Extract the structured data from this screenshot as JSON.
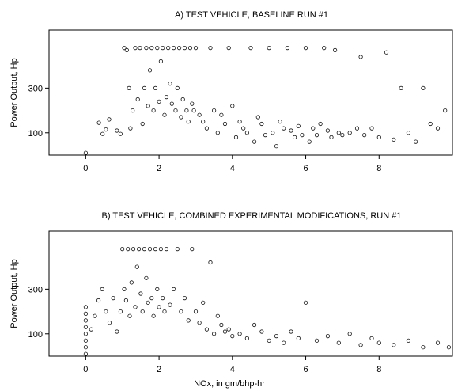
{
  "chart_data": [
    {
      "type": "scatter",
      "title": "A) TEST VEHICLE, BASELINE RUN #1",
      "xlabel": "",
      "ylabel": "Power Output, Hp",
      "xlim": [
        -1,
        10
      ],
      "ylim": [
        0,
        560
      ],
      "xticks": [
        0,
        2,
        4,
        6,
        8
      ],
      "xtick_labels": [
        "0",
        "2",
        "4",
        "6",
        "8"
      ],
      "yticks": [
        100,
        300
      ],
      "ytick_labels": [
        "100",
        "300"
      ],
      "marker": "open-circle",
      "grid": false,
      "legend": "none",
      "points_note": "approximately 2000 points; values estimated",
      "x": [
        0.0,
        0.36,
        0.46,
        0.55,
        0.64,
        0.85,
        0.95,
        1.05,
        1.12,
        1.18,
        1.22,
        1.28,
        1.35,
        1.42,
        1.48,
        1.55,
        1.6,
        1.65,
        1.7,
        1.75,
        1.8,
        1.85,
        1.9,
        1.95,
        2.0,
        2.05,
        2.1,
        2.15,
        2.2,
        2.25,
        2.3,
        2.35,
        2.4,
        2.45,
        2.5,
        2.55,
        2.6,
        2.65,
        2.7,
        2.75,
        2.8,
        2.85,
        2.9,
        2.95,
        3.0,
        3.1,
        3.2,
        3.3,
        3.4,
        3.5,
        3.6,
        3.7,
        3.8,
        3.9,
        4.0,
        4.1,
        4.2,
        4.3,
        4.4,
        4.5,
        4.6,
        4.7,
        4.8,
        4.9,
        5.0,
        5.1,
        5.2,
        5.3,
        5.4,
        5.5,
        5.6,
        5.7,
        5.8,
        5.9,
        6.0,
        6.1,
        6.2,
        6.3,
        6.4,
        6.5,
        6.6,
        6.7,
        6.8,
        6.9,
        7.0,
        7.2,
        7.4,
        7.5,
        7.6,
        7.8,
        8.0,
        8.2,
        8.4,
        8.6,
        8.8,
        9.0,
        9.2,
        9.4,
        9.6,
        9.8
      ],
      "y": [
        10,
        145,
        95,
        115,
        160,
        110,
        95,
        480,
        470,
        300,
        120,
        200,
        480,
        250,
        480,
        140,
        300,
        480,
        220,
        380,
        480,
        200,
        300,
        480,
        240,
        420,
        480,
        180,
        260,
        480,
        320,
        230,
        480,
        200,
        300,
        480,
        170,
        250,
        480,
        200,
        150,
        480,
        230,
        200,
        480,
        180,
        150,
        120,
        480,
        200,
        100,
        180,
        140,
        480,
        220,
        80,
        150,
        120,
        100,
        480,
        60,
        170,
        140,
        90,
        480,
        100,
        40,
        150,
        120,
        480,
        110,
        80,
        130,
        90,
        480,
        60,
        120,
        90,
        140,
        480,
        110,
        80,
        470,
        100,
        90,
        100,
        120,
        440,
        90,
        120,
        80,
        460,
        70,
        300,
        100,
        60,
        300,
        140,
        120,
        200
      ]
    },
    {
      "type": "scatter",
      "title": "B) TEST VEHICLE, COMBINED EXPERIMENTAL MODIFICATIONS, RUN #1",
      "xlabel": "NOx, in gm/bhp-hr",
      "ylabel": "Power Output, Hp",
      "xlim": [
        -1,
        10
      ],
      "ylim": [
        0,
        560
      ],
      "xticks": [
        0,
        2,
        4,
        6,
        8
      ],
      "xtick_labels": [
        "0",
        "2",
        "4",
        "6",
        "8"
      ],
      "yticks": [
        100,
        300
      ],
      "ytick_labels": [
        "100",
        "300"
      ],
      "marker": "open-circle",
      "grid": false,
      "legend": "none",
      "points_note": "approximately 2000 points; values estimated",
      "x": [
        0.0,
        0.0,
        0.0,
        0.0,
        0.0,
        0.0,
        0.0,
        0.0,
        0.15,
        0.25,
        0.35,
        0.45,
        0.55,
        0.65,
        0.75,
        0.85,
        0.95,
        1.0,
        1.05,
        1.1,
        1.15,
        1.2,
        1.25,
        1.3,
        1.35,
        1.4,
        1.45,
        1.5,
        1.55,
        1.6,
        1.65,
        1.7,
        1.75,
        1.8,
        1.85,
        1.9,
        1.95,
        2.0,
        2.05,
        2.1,
        2.15,
        2.2,
        2.3,
        2.4,
        2.5,
        2.6,
        2.7,
        2.8,
        2.9,
        3.0,
        3.1,
        3.2,
        3.3,
        3.4,
        3.5,
        3.6,
        3.7,
        3.8,
        3.9,
        4.0,
        4.2,
        4.4,
        4.6,
        4.8,
        5.0,
        5.2,
        5.4,
        5.6,
        5.8,
        6.0,
        6.3,
        6.6,
        6.9,
        7.2,
        7.5,
        7.8,
        8.0,
        8.4,
        8.8,
        9.2,
        9.6,
        9.9
      ],
      "y": [
        10,
        40,
        70,
        100,
        130,
        160,
        190,
        220,
        120,
        180,
        250,
        300,
        200,
        150,
        260,
        110,
        200,
        480,
        300,
        250,
        480,
        180,
        330,
        480,
        220,
        400,
        480,
        280,
        200,
        480,
        350,
        240,
        480,
        260,
        180,
        480,
        300,
        220,
        480,
        260,
        200,
        480,
        230,
        300,
        480,
        200,
        260,
        160,
        480,
        200,
        150,
        240,
        120,
        420,
        100,
        180,
        140,
        110,
        120,
        90,
        100,
        80,
        140,
        110,
        70,
        90,
        60,
        110,
        80,
        240,
        70,
        90,
        60,
        100,
        50,
        80,
        60,
        50,
        70,
        40,
        60,
        40
      ]
    }
  ],
  "page": {
    "xaxis_title": "NOx, in gm/bhp-hr"
  }
}
